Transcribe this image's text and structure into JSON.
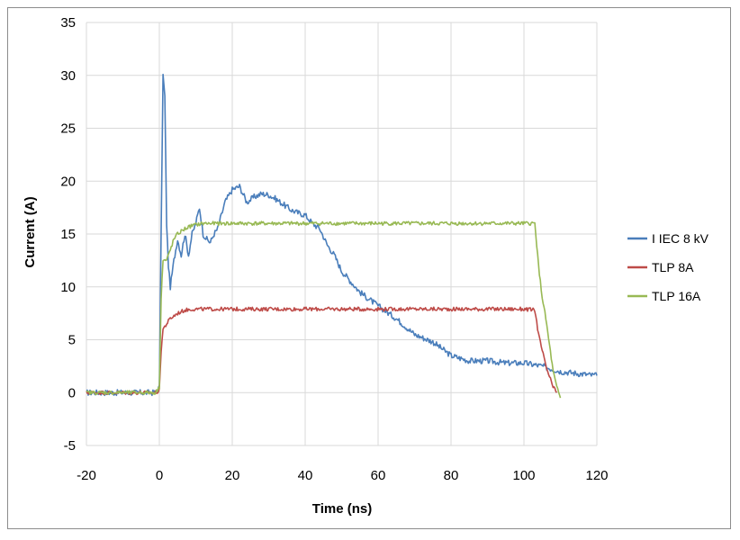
{
  "chart_data": {
    "type": "line",
    "xlabel": "Time (ns)",
    "ylabel": "Current (A)",
    "xlim": [
      -20,
      120
    ],
    "ylim": [
      -5,
      35
    ],
    "x_ticks": [
      -20,
      0,
      20,
      40,
      60,
      80,
      100,
      120
    ],
    "y_ticks": [
      -5,
      0,
      5,
      10,
      15,
      20,
      25,
      30,
      35
    ],
    "grid": true,
    "legend_position": "right",
    "series": [
      {
        "name": "I IEC 8 kV",
        "color": "#4a7ebb",
        "x": [
          -20,
          -10,
          -1,
          0,
          0.5,
          1,
          1.5,
          2,
          2.5,
          3,
          4,
          5,
          6,
          7,
          8,
          9,
          10,
          11,
          12,
          13,
          14,
          15,
          16,
          18,
          20,
          22,
          24,
          26,
          28,
          30,
          32,
          34,
          36,
          38,
          40,
          42,
          44,
          46,
          48,
          50,
          55,
          60,
          65,
          70,
          75,
          80,
          85,
          90,
          95,
          100,
          105,
          110,
          115,
          120
        ],
        "y": [
          0,
          0,
          0,
          0.5,
          15,
          30,
          28,
          16,
          12,
          10,
          12.5,
          14.5,
          13,
          15,
          13,
          15,
          16,
          17.5,
          15,
          14.5,
          14.2,
          15,
          15.5,
          18,
          19.2,
          19.5,
          18,
          18.5,
          18.8,
          18.7,
          18.3,
          17.8,
          17.3,
          17,
          16.8,
          16,
          15.5,
          14,
          13,
          11.5,
          9.5,
          8.2,
          7,
          5.5,
          4.8,
          3.5,
          3,
          3,
          2.8,
          2.8,
          2.5,
          2,
          1.8,
          1.6
        ]
      },
      {
        "name": "TLP 8A",
        "color": "#be4b48",
        "x": [
          -20,
          -10,
          -1,
          0,
          0.5,
          1,
          2,
          3,
          5,
          7,
          9,
          12,
          20,
          40,
          60,
          80,
          100,
          103,
          104,
          106,
          108,
          109
        ],
        "y": [
          0,
          0,
          0,
          0.2,
          4,
          6,
          6.5,
          7,
          7.5,
          7.8,
          7.9,
          7.9,
          7.9,
          7.9,
          7.9,
          7.9,
          7.9,
          7.8,
          5.5,
          2.5,
          0.5,
          0
        ]
      },
      {
        "name": "TLP 16A",
        "color": "#98b954",
        "x": [
          -20,
          -10,
          -1,
          0,
          0.5,
          1,
          2,
          3,
          4,
          5,
          7,
          9,
          12,
          15,
          20,
          40,
          60,
          80,
          100,
          103,
          104,
          105,
          106,
          107,
          108,
          109,
          110
        ],
        "y": [
          0,
          0,
          0,
          0.5,
          9,
          12.5,
          12.5,
          13.5,
          14.5,
          15,
          15.5,
          15.8,
          16,
          16,
          16,
          16,
          16,
          16,
          16,
          16,
          12,
          9,
          7,
          4.5,
          2,
          0.5,
          -0.5
        ]
      }
    ]
  }
}
